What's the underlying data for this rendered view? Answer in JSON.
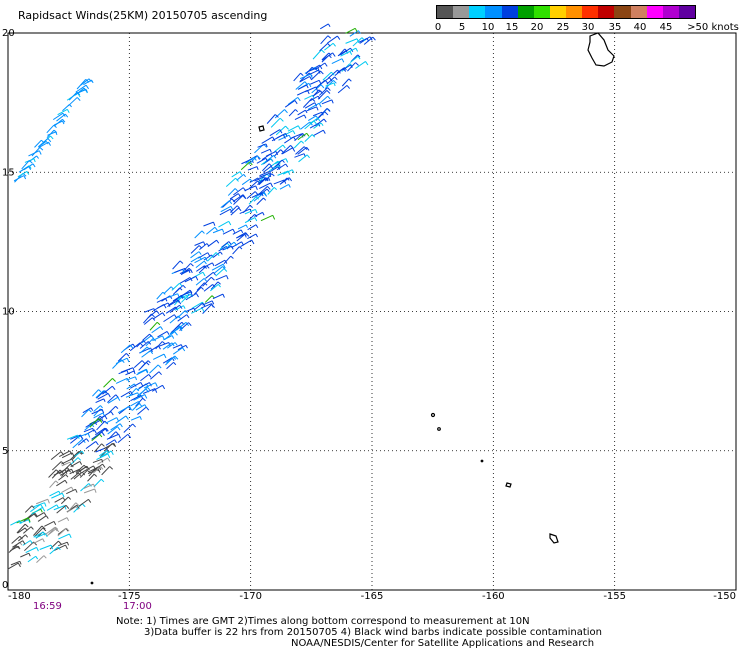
{
  "title": "Rapidsact Winds(25KM) 20150705 ascending",
  "colorbar": {
    "colors": [
      "#555555",
      "#999999",
      "#00d0ff",
      "#0090ff",
      "#0040e0",
      "#00a000",
      "#30e000",
      "#ffd000",
      "#ff9000",
      "#ff3000",
      "#c00000",
      "#8b4513",
      "#d08060",
      "#ff00ff",
      "#b000d0",
      "#6000a0"
    ],
    "labels": [
      "0",
      "5",
      "10",
      "15",
      "20",
      "25",
      "30",
      "35",
      "40",
      "45",
      ">50 knots"
    ]
  },
  "axes": {
    "x_ticks": [
      "-180",
      "-175",
      "-170",
      "-165",
      "-160",
      "-155",
      "-150"
    ],
    "y_ticks": [
      "0",
      "5",
      "10",
      "15",
      "20"
    ]
  },
  "times": [
    "16:59",
    "17:00"
  ],
  "notes": [
    "Note: 1) Times are GMT 2)Times along bottom correspond to measurement at 10N",
    "3)Data buffer is 22 hrs from 20150705 4) Black wind barbs indicate possible contamination",
    "NOAA/NESDIS/Center for Satellite Applications and Research"
  ]
}
